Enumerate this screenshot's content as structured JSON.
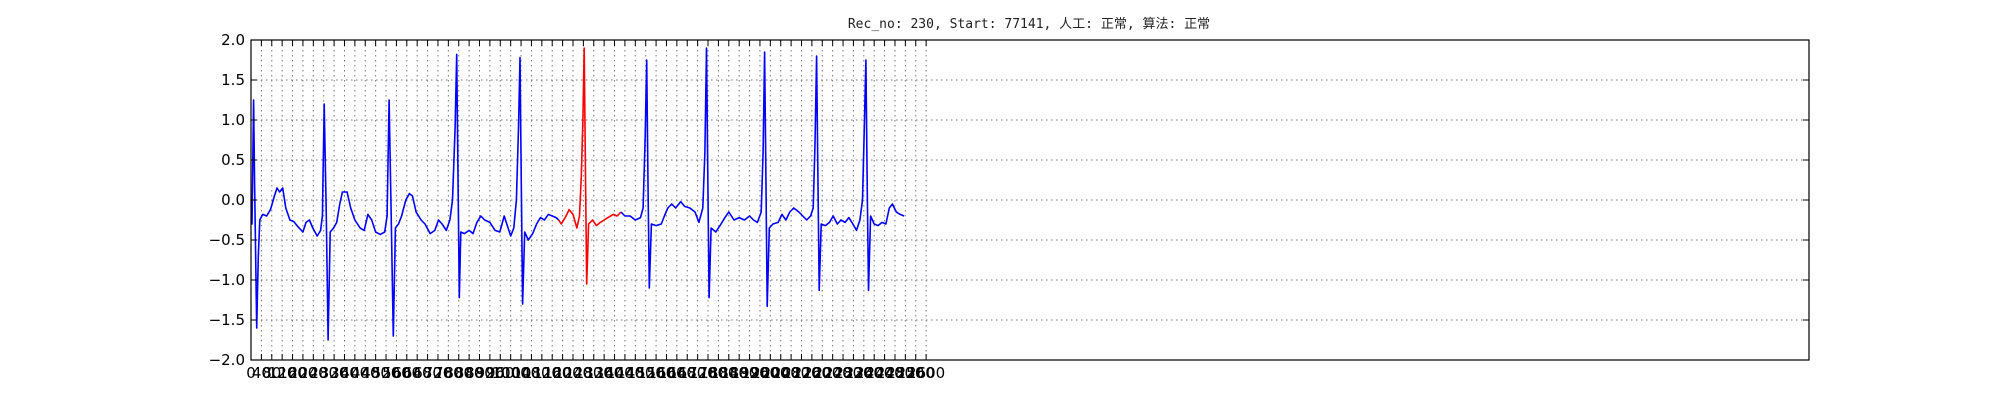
{
  "chart_data": {
    "type": "line",
    "title": "Rec_no: 230, Start: 77141, 人工: 正常, 算法: 正常",
    "xlabel": "",
    "ylabel": "",
    "xlim": [
      0,
      6000
    ],
    "ylim": [
      -2.0,
      2.0
    ],
    "grid": true,
    "y_ticks": [
      "2.0",
      "1.5",
      "1.0",
      "0.5",
      "0.0",
      "−0.5",
      "−1.0",
      "−1.5",
      "−2.0"
    ],
    "x_ticks": [
      "0",
      "40",
      "80",
      "120",
      "160",
      "200",
      "240",
      "280",
      "320",
      "360",
      "400",
      "440",
      "480",
      "520",
      "560",
      "600",
      "640",
      "680",
      "720",
      "760",
      "800",
      "840",
      "880",
      "920",
      "960",
      "1000",
      "1040",
      "1080",
      "1120",
      "1160",
      "1200",
      "1240",
      "1280",
      "1320",
      "1360",
      "1400",
      "1440",
      "1480",
      "1520",
      "1560",
      "1600",
      "1640",
      "1680",
      "1720",
      "1760",
      "1800",
      "1840",
      "1880",
      "1920",
      "1960",
      "2000",
      "2040",
      "2080",
      "2120",
      "2160",
      "2200",
      "2240",
      "2280",
      "2320",
      "2360",
      "2400",
      "2440",
      "2480",
      "2520",
      "2560",
      "2600"
    ],
    "tick_spacing": 40,
    "colors": {
      "normal": "#0000ff",
      "highlight": "#ff0000"
    },
    "series": [
      {
        "color": "#0000ff",
        "points": [
          [
            0,
            -0.3
          ],
          [
            4,
            -0.3
          ],
          [
            10,
            1.25
          ],
          [
            14,
            0.2
          ],
          [
            22,
            -1.6
          ],
          [
            28,
            -0.7
          ],
          [
            34,
            -0.25
          ],
          [
            45,
            -0.18
          ],
          [
            60,
            -0.2
          ],
          [
            75,
            -0.12
          ],
          [
            90,
            0.05
          ],
          [
            100,
            0.15
          ],
          [
            110,
            0.1
          ],
          [
            122,
            0.15
          ],
          [
            134,
            -0.1
          ],
          [
            150,
            -0.25
          ],
          [
            165,
            -0.27
          ],
          [
            180,
            -0.33
          ],
          [
            200,
            -0.4
          ],
          [
            212,
            -0.28
          ],
          [
            225,
            -0.25
          ],
          [
            238,
            -0.35
          ],
          [
            255,
            -0.45
          ],
          [
            268,
            -0.38
          ],
          [
            275,
            -0.2
          ],
          [
            282,
            1.2
          ],
          [
            290,
            -0.2
          ],
          [
            297,
            -1.75
          ],
          [
            305,
            -0.4
          ],
          [
            318,
            -0.35
          ],
          [
            330,
            -0.28
          ],
          [
            342,
            -0.05
          ],
          [
            352,
            0.1
          ],
          [
            370,
            0.1
          ],
          [
            384,
            -0.1
          ],
          [
            400,
            -0.25
          ],
          [
            420,
            -0.35
          ],
          [
            436,
            -0.38
          ],
          [
            450,
            -0.18
          ],
          [
            465,
            -0.25
          ],
          [
            480,
            -0.4
          ],
          [
            498,
            -0.43
          ],
          [
            515,
            -0.4
          ],
          [
            524,
            -0.2
          ],
          [
            532,
            1.25
          ],
          [
            540,
            -0.2
          ],
          [
            548,
            -1.7
          ],
          [
            556,
            -0.35
          ],
          [
            568,
            -0.3
          ],
          [
            580,
            -0.2
          ],
          [
            596,
            0.0
          ],
          [
            610,
            0.08
          ],
          [
            622,
            0.05
          ],
          [
            636,
            -0.15
          ],
          [
            655,
            -0.25
          ],
          [
            670,
            -0.3
          ],
          [
            690,
            -0.42
          ],
          [
            708,
            -0.38
          ],
          [
            722,
            -0.25
          ],
          [
            736,
            -0.3
          ],
          [
            752,
            -0.38
          ],
          [
            766,
            -0.25
          ],
          [
            776,
            0.0
          ],
          [
            786,
            0.9
          ],
          [
            792,
            1.82
          ],
          [
            797,
            0.3
          ],
          [
            802,
            -1.22
          ],
          [
            808,
            -0.4
          ],
          [
            822,
            -0.42
          ],
          [
            840,
            -0.38
          ],
          [
            855,
            -0.42
          ],
          [
            870,
            -0.28
          ],
          [
            885,
            -0.2
          ],
          [
            900,
            -0.25
          ],
          [
            920,
            -0.28
          ],
          [
            940,
            -0.38
          ],
          [
            958,
            -0.4
          ],
          [
            975,
            -0.2
          ],
          [
            985,
            -0.3
          ],
          [
            1000,
            -0.45
          ],
          [
            1012,
            -0.35
          ],
          [
            1022,
            0.0
          ],
          [
            1030,
            0.9
          ],
          [
            1036,
            1.78
          ],
          [
            1041,
            0.2
          ],
          [
            1046,
            -1.3
          ],
          [
            1054,
            -0.4
          ],
          [
            1068,
            -0.5
          ],
          [
            1085,
            -0.42
          ],
          [
            1100,
            -0.3
          ],
          [
            1115,
            -0.22
          ],
          [
            1130,
            -0.25
          ],
          [
            1145,
            -0.18
          ],
          [
            1160,
            -0.2
          ],
          [
            1175,
            -0.22
          ],
          [
            1185,
            -0.25
          ]
        ]
      },
      {
        "color": "#ff0000",
        "points": [
          [
            1185,
            -0.25
          ],
          [
            1195,
            -0.3
          ],
          [
            1210,
            -0.22
          ],
          [
            1225,
            -0.12
          ],
          [
            1240,
            -0.18
          ],
          [
            1255,
            -0.35
          ],
          [
            1265,
            -0.2
          ],
          [
            1272,
            0.3
          ],
          [
            1278,
            1.0
          ],
          [
            1283,
            1.9
          ],
          [
            1288,
            0.3
          ],
          [
            1293,
            -1.05
          ],
          [
            1300,
            -0.3
          ],
          [
            1315,
            -0.25
          ],
          [
            1330,
            -0.32
          ],
          [
            1345,
            -0.28
          ],
          [
            1360,
            -0.25
          ],
          [
            1375,
            -0.22
          ],
          [
            1395,
            -0.18
          ],
          [
            1410,
            -0.2
          ],
          [
            1425,
            -0.15
          ]
        ]
      },
      {
        "color": "#0000ff",
        "points": [
          [
            1425,
            -0.15
          ],
          [
            1440,
            -0.2
          ],
          [
            1460,
            -0.2
          ],
          [
            1480,
            -0.25
          ],
          [
            1500,
            -0.22
          ],
          [
            1510,
            -0.1
          ],
          [
            1518,
            0.8
          ],
          [
            1524,
            1.75
          ],
          [
            1529,
            0.2
          ],
          [
            1534,
            -1.1
          ],
          [
            1542,
            -0.3
          ],
          [
            1560,
            -0.32
          ],
          [
            1580,
            -0.3
          ],
          [
            1592,
            -0.2
          ],
          [
            1605,
            -0.1
          ],
          [
            1620,
            -0.05
          ],
          [
            1635,
            -0.1
          ],
          [
            1655,
            -0.02
          ],
          [
            1670,
            -0.08
          ],
          [
            1690,
            -0.1
          ],
          [
            1710,
            -0.15
          ],
          [
            1725,
            -0.28
          ],
          [
            1740,
            -0.1
          ],
          [
            1748,
            0.6
          ],
          [
            1754,
            1.9
          ],
          [
            1759,
            0.3
          ],
          [
            1764,
            -1.22
          ],
          [
            1772,
            -0.35
          ],
          [
            1790,
            -0.4
          ],
          [
            1810,
            -0.3
          ],
          [
            1825,
            -0.22
          ],
          [
            1840,
            -0.15
          ],
          [
            1860,
            -0.25
          ],
          [
            1880,
            -0.22
          ],
          [
            1900,
            -0.25
          ],
          [
            1920,
            -0.2
          ],
          [
            1935,
            -0.25
          ],
          [
            1950,
            -0.28
          ],
          [
            1965,
            -0.15
          ],
          [
            1972,
            0.6
          ],
          [
            1978,
            1.85
          ],
          [
            1983,
            0.3
          ],
          [
            1988,
            -1.33
          ],
          [
            1996,
            -0.35
          ],
          [
            2010,
            -0.3
          ],
          [
            2030,
            -0.28
          ],
          [
            2045,
            -0.18
          ],
          [
            2060,
            -0.25
          ],
          [
            2075,
            -0.15
          ],
          [
            2090,
            -0.1
          ],
          [
            2110,
            -0.15
          ],
          [
            2125,
            -0.2
          ],
          [
            2140,
            -0.25
          ],
          [
            2155,
            -0.2
          ],
          [
            2165,
            -0.1
          ],
          [
            2172,
            0.7
          ],
          [
            2178,
            1.8
          ],
          [
            2183,
            0.3
          ],
          [
            2188,
            -1.13
          ],
          [
            2196,
            -0.3
          ],
          [
            2212,
            -0.32
          ],
          [
            2228,
            -0.28
          ],
          [
            2242,
            -0.2
          ],
          [
            2258,
            -0.3
          ],
          [
            2272,
            -0.25
          ],
          [
            2288,
            -0.28
          ],
          [
            2302,
            -0.22
          ],
          [
            2318,
            -0.3
          ],
          [
            2332,
            -0.38
          ],
          [
            2345,
            -0.25
          ],
          [
            2355,
            0.0
          ],
          [
            2362,
            0.9
          ],
          [
            2368,
            1.75
          ],
          [
            2373,
            0.2
          ],
          [
            2378,
            -1.13
          ],
          [
            2386,
            -0.2
          ],
          [
            2400,
            -0.3
          ],
          [
            2415,
            -0.32
          ],
          [
            2430,
            -0.28
          ],
          [
            2445,
            -0.3
          ],
          [
            2458,
            -0.1
          ],
          [
            2470,
            -0.05
          ],
          [
            2485,
            -0.15
          ],
          [
            2500,
            -0.18
          ],
          [
            2515,
            -0.2
          ]
        ]
      }
    ]
  }
}
